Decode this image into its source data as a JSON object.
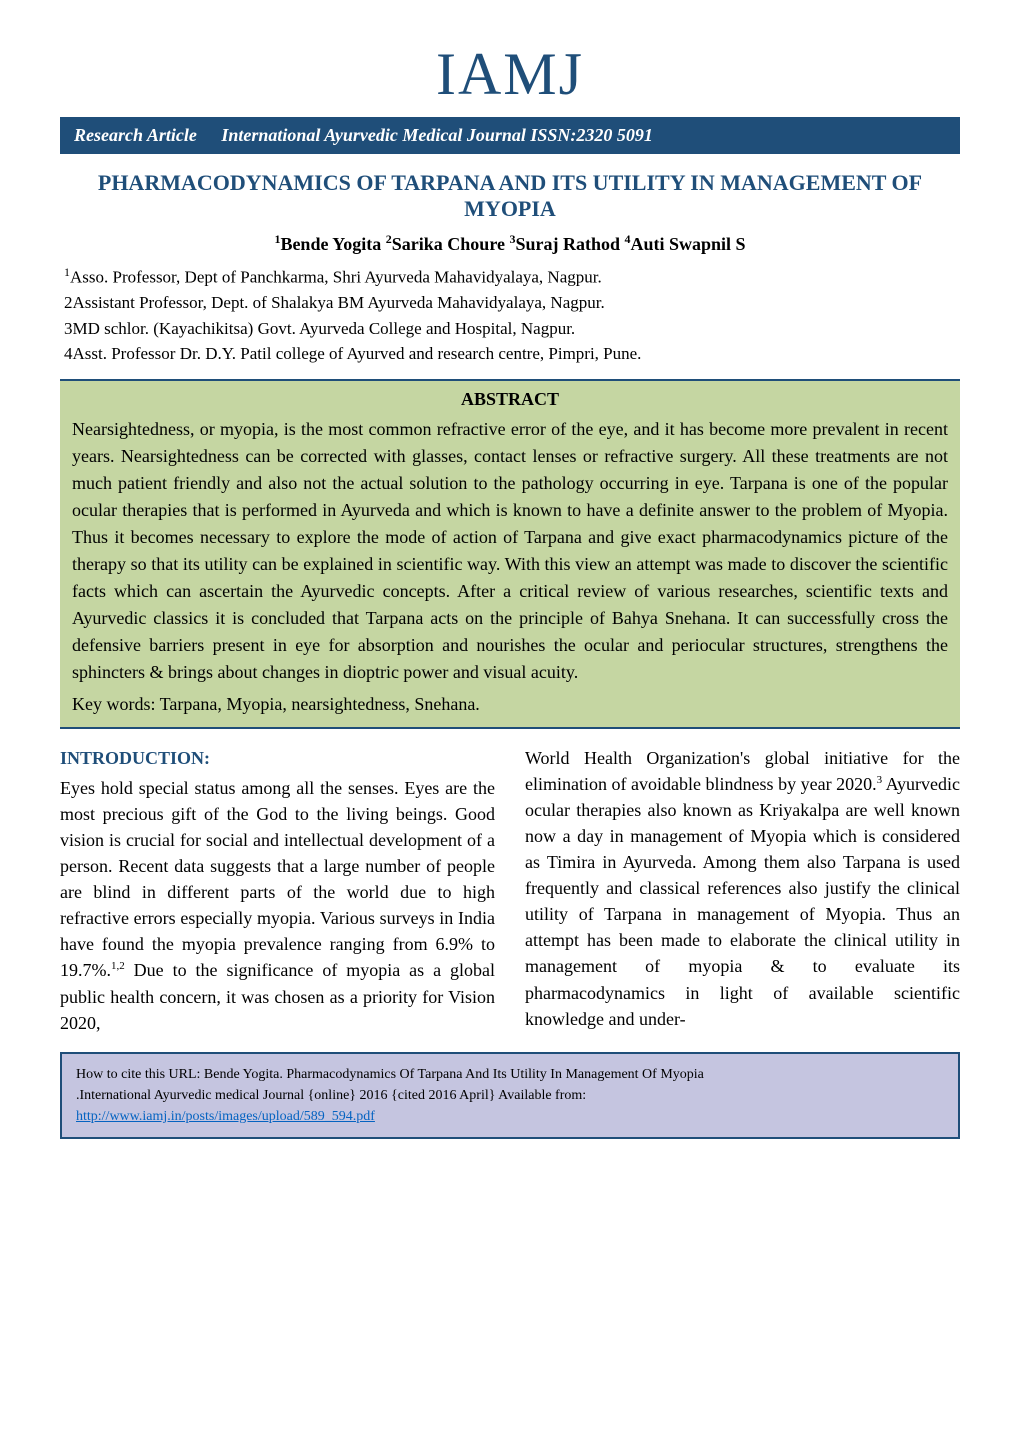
{
  "logo": "IAMJ",
  "header_bar": {
    "article_type": "Research Article",
    "journal_info": "International Ayurvedic Medical Journal   ISSN:2320 5091"
  },
  "article_title": "PHARMACODYNAMICS OF TARPANA AND ITS UTILITY IN MANAGEMENT OF MYOPIA",
  "authors": {
    "a1_sup": "1",
    "a1": "Bende Yogita ",
    "a2_sup": "2",
    "a2": "Sarika Choure ",
    "a3_sup": "3",
    "a3": "Suraj Rathod ",
    "a4_sup": "4",
    "a4": "Auti Swapnil S"
  },
  "affiliations": {
    "aff1_sup": "1",
    "aff1": "Asso. Professor, Dept of Panchkarma, Shri Ayurveda Mahavidyalaya, Nagpur.",
    "aff2": "2Assistant Professor, Dept. of Shalakya  BM Ayurveda Mahavidyalaya, Nagpur.",
    "aff3": "3MD schlor. (Kayachikitsa) Govt. Ayurveda College and Hospital, Nagpur.",
    "aff4": "4Asst. Professor Dr. D.Y. Patil college of Ayurved and research centre, Pimpri, Pune."
  },
  "abstract": {
    "heading": "ABSTRACT",
    "text": "Nearsightedness, or myopia, is the most common refractive error of the eye, and it has become more prevalent in recent years.  Nearsightedness can be corrected with glasses, contact lenses or refractive surgery. All these treatments are not much patient friendly and also not the actual solution to the pathology occurring in eye. Tarpana is one of the popular ocular therapies that is performed in Ayurveda and which is known to have a definite answer to the problem of Myopia. Thus it becomes necessary to explore the mode of action of Tarpana and give exact pharmacodynamics picture of the therapy so that its utility can be explained in scientific way. With this view an attempt was made to discover the scientific facts which can ascertain the Ayurvedic concepts. After a critical review of various researches, scientific texts and Ayurvedic classics it is concluded that Tarpana acts on the principle of Bahya Snehana. It can successfully cross the defensive barriers present in eye for absorption and nourishes the ocular and periocular structures, strengthens the sphincters & brings about changes in dioptric power and visual acuity.",
    "keywords": "Key words: Tarpana, Myopia, nearsightedness, Snehana."
  },
  "introduction": {
    "heading": "INTRODUCTION:",
    "col1_part1": "Eyes hold special status among all the senses. Eyes are the most precious gift of the God to the living beings. Good vision is crucial for social and intellectual development of a person. Recent data suggests that a large number of people are blind in different parts of the world due to high refractive errors especially myopia. Various surveys in India have found the myopia prevalence ranging from 6.9% to 19.7%.",
    "col1_ref1": "1,2",
    "col1_part2": " Due to the significance of myopia as a global public health concern, it was chosen as a priority for Vision 2020,",
    "col2_part1": "World Health Organization's global initiative for the elimination of avoidable blindness by year 2020.",
    "col2_ref1": "3",
    "col2_part2": " Ayurvedic ocular therapies also known as Kriyakalpa are well known now a day in management of Myopia which is considered as Timira in Ayurveda. Among them also Tarpana is used frequently and classical references also justify the clinical utility of Tarpana in management of Myopia. Thus an attempt has been made to elaborate the clinical utility in management of myopia & to evaluate its pharmacodynamics in light of available scientific knowledge and under-"
  },
  "citation": {
    "text1": "How to cite this URL: Bende Yogita. Pharmacodynamics Of Tarpana And Its Utility In Management Of Myopia",
    "text2": ".International Ayurvedic medical Journal {online} 2016 {cited 2016 April} Available from:",
    "url": "http://www.iamj.in/posts/images/upload/589_594.pdf"
  },
  "colors": {
    "brand_blue": "#1f4e79",
    "abstract_bg": "#c5d6a2",
    "citation_bg": "#c5c5e0",
    "link_color": "#0563c1",
    "text_color": "#000000",
    "page_bg": "#ffffff"
  }
}
